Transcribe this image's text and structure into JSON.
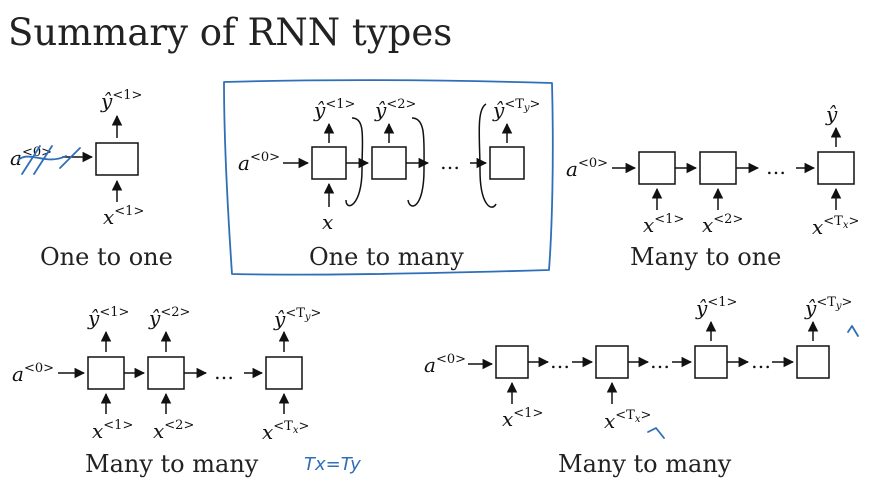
{
  "title": "Summary of RNN types",
  "labels": {
    "a0": "a",
    "a0_sup": "<0>",
    "y_hat": "ŷ",
    "x": "x",
    "sup_1": "<1>",
    "sup_2": "<2>",
    "sup_open": "<T",
    "sup_close": ">",
    "sub_y": "y",
    "sub_x": "x",
    "dots": "…"
  },
  "panels": {
    "one_to_one": {
      "caption": "One to one"
    },
    "one_to_many": {
      "caption": "One to many"
    },
    "many_to_one": {
      "caption": "Many to one"
    },
    "many_to_many_equal": {
      "caption": "Many to many",
      "note": "Tx=Ty"
    },
    "many_to_many_seq": {
      "caption": "Many to many"
    }
  },
  "colors": {
    "ink": "#2f6fb8",
    "text": "#111111"
  }
}
